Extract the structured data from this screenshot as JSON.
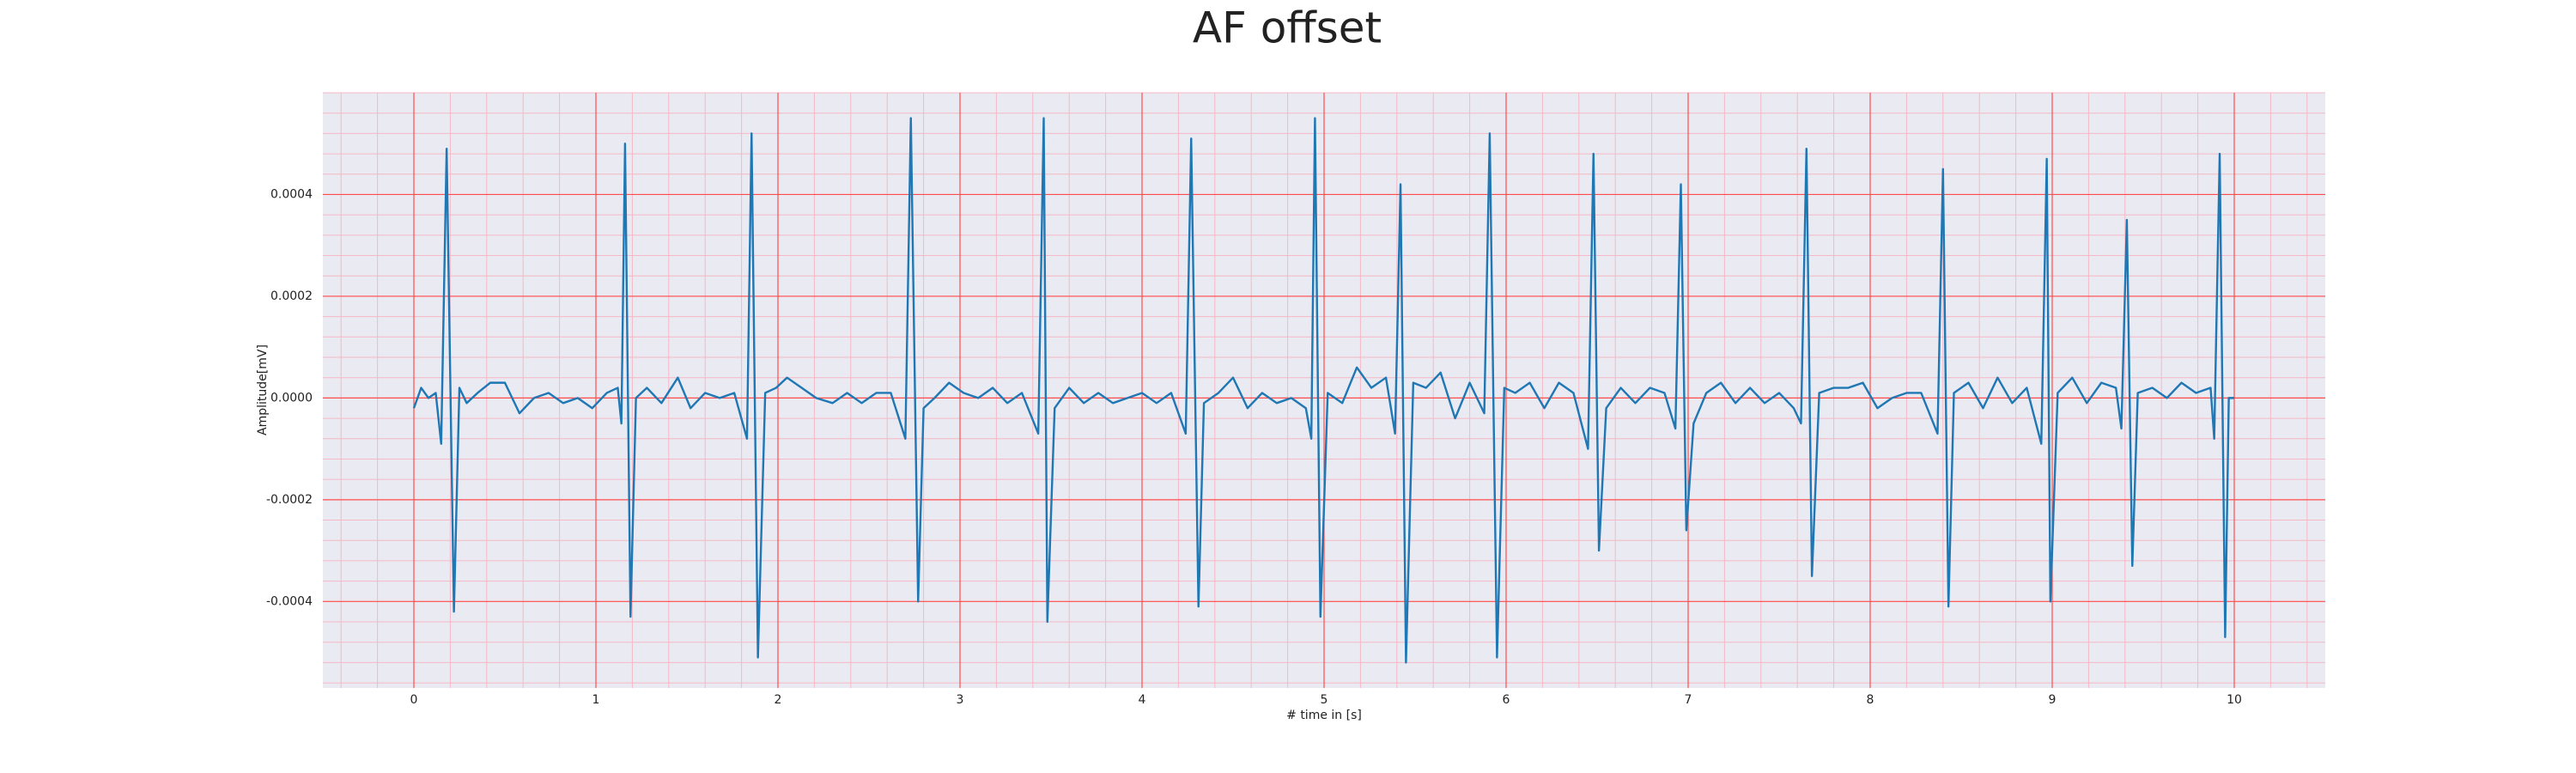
{
  "chart_data": {
    "type": "line",
    "title": "AF offset",
    "xlabel": "# time in [s]",
    "ylabel": "Amplitude[mV]",
    "xlim": [
      -0.5,
      10.5
    ],
    "ylim": [
      -0.00057,
      0.0006
    ],
    "xticks": [
      0,
      1,
      2,
      3,
      4,
      5,
      6,
      7,
      8,
      9,
      10
    ],
    "yticks": [
      -0.0004,
      -0.0002,
      {
        "value": 0,
        "label": "0.0000"
      },
      0.0002,
      0.0004
    ],
    "grid": true,
    "minor_grid": true,
    "grid_color": "#ff4d4d",
    "minor_grid_color": "#f5b8c4",
    "background": "#eaeaf2",
    "series": [
      {
        "color": "#1f77b4",
        "x": [
          0.0,
          0.04,
          0.08,
          0.12,
          0.15,
          0.18,
          0.22,
          0.25,
          0.29,
          0.35,
          0.42,
          0.5,
          0.58,
          0.66,
          0.74,
          0.82,
          0.9,
          0.98,
          1.06,
          1.12,
          1.14,
          1.16,
          1.19,
          1.22,
          1.28,
          1.36,
          1.45,
          1.52,
          1.6,
          1.68,
          1.76,
          1.83,
          1.855,
          1.89,
          1.93,
          1.99,
          2.05,
          2.13,
          2.21,
          2.3,
          2.38,
          2.46,
          2.54,
          2.62,
          2.7,
          2.73,
          2.77,
          2.8,
          2.86,
          2.94,
          3.02,
          3.1,
          3.18,
          3.26,
          3.34,
          3.43,
          3.46,
          3.48,
          3.52,
          3.6,
          3.68,
          3.76,
          3.84,
          3.92,
          4.0,
          4.08,
          4.16,
          4.24,
          4.27,
          4.31,
          4.34,
          4.42,
          4.5,
          4.58,
          4.66,
          4.74,
          4.82,
          4.9,
          4.93,
          4.95,
          4.98,
          5.02,
          5.1,
          5.18,
          5.26,
          5.34,
          5.39,
          5.42,
          5.45,
          5.49,
          5.56,
          5.64,
          5.72,
          5.8,
          5.88,
          5.91,
          5.95,
          5.99,
          6.05,
          6.13,
          6.21,
          6.29,
          6.37,
          6.45,
          6.48,
          6.51,
          6.55,
          6.63,
          6.71,
          6.79,
          6.87,
          6.93,
          6.96,
          6.99,
          7.03,
          7.1,
          7.18,
          7.26,
          7.34,
          7.42,
          7.5,
          7.58,
          7.62,
          7.65,
          7.68,
          7.72,
          7.8,
          7.88,
          7.96,
          8.04,
          8.12,
          8.2,
          8.28,
          8.37,
          8.4,
          8.43,
          8.46,
          8.54,
          8.62,
          8.7,
          8.78,
          8.86,
          8.94,
          8.97,
          8.99,
          9.03,
          9.11,
          9.19,
          9.27,
          9.35,
          9.38,
          9.41,
          9.44,
          9.47,
          9.55,
          9.63,
          9.71,
          9.79,
          9.87,
          9.89,
          9.92,
          9.95,
          9.97,
          10.0
        ],
        "values": [
          -2e-05,
          2e-05,
          0.0,
          1e-05,
          -9e-05,
          0.00049,
          -0.00042,
          2e-05,
          -1e-05,
          1e-05,
          3e-05,
          3e-05,
          -3e-05,
          0.0,
          1e-05,
          -1e-05,
          0.0,
          -2e-05,
          1e-05,
          2e-05,
          -5e-05,
          0.0005,
          -0.00043,
          0.0,
          2e-05,
          -1e-05,
          4e-05,
          -2e-05,
          1e-05,
          0.0,
          1e-05,
          -8e-05,
          0.00052,
          -0.00051,
          1e-05,
          2e-05,
          4e-05,
          2e-05,
          0.0,
          -1e-05,
          1e-05,
          -1e-05,
          1e-05,
          1e-05,
          -8e-05,
          0.00055,
          -0.0004,
          -2e-05,
          0.0,
          3e-05,
          1e-05,
          0.0,
          2e-05,
          -1e-05,
          1e-05,
          -7e-05,
          0.00055,
          -0.00044,
          -2e-05,
          2e-05,
          -1e-05,
          1e-05,
          -1e-05,
          0.0,
          1e-05,
          -1e-05,
          1e-05,
          -7e-05,
          0.00051,
          -0.00041,
          -1e-05,
          1e-05,
          4e-05,
          -2e-05,
          1e-05,
          -1e-05,
          0.0,
          -2e-05,
          -8e-05,
          0.00055,
          -0.00043,
          1e-05,
          -1e-05,
          6e-05,
          2e-05,
          4e-05,
          -7e-05,
          0.00042,
          -0.00052,
          3e-05,
          2e-05,
          5e-05,
          -4e-05,
          3e-05,
          -3e-05,
          0.00052,
          -0.00051,
          2e-05,
          1e-05,
          3e-05,
          -2e-05,
          3e-05,
          1e-05,
          -0.0001,
          0.00048,
          -0.0003,
          -2e-05,
          2e-05,
          -1e-05,
          2e-05,
          1e-05,
          -6e-05,
          0.00042,
          -0.00026,
          -5e-05,
          1e-05,
          3e-05,
          -1e-05,
          2e-05,
          -1e-05,
          1e-05,
          -2e-05,
          -5e-05,
          0.00049,
          -0.00035,
          1e-05,
          2e-05,
          2e-05,
          3e-05,
          -2e-05,
          0.0,
          1e-05,
          1e-05,
          -7e-05,
          0.00045,
          -0.00041,
          1e-05,
          3e-05,
          -2e-05,
          4e-05,
          -1e-05,
          2e-05,
          -9e-05,
          0.00047,
          -0.0004,
          1e-05,
          4e-05,
          -1e-05,
          3e-05,
          2e-05,
          -6e-05,
          0.00035,
          -0.00033,
          1e-05,
          2e-05,
          0.0,
          3e-05,
          1e-05,
          2e-05,
          -8e-05,
          0.00048,
          -0.00047,
          0.0,
          0.0
        ]
      }
    ]
  }
}
